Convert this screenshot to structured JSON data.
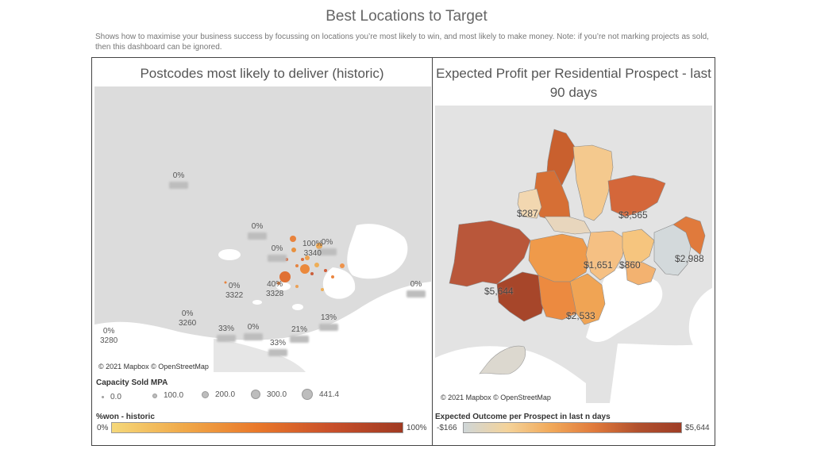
{
  "dashboard": {
    "title": "Best Locations to Target",
    "subtitle": "Shows how to maximise your business success by focussing on locations you’re most likely to win, and most likely to make money. Note: if you’re not marking projects as sold, then this dashboard can be ignored."
  },
  "left_panel": {
    "title": "Postcodes most likely to deliver (historic)",
    "attribution": "© 2021 Mapbox © OpenStreetMap",
    "labels": [
      {
        "pct": "0%",
        "code": ""
      },
      {
        "pct": "0%",
        "code": ""
      },
      {
        "pct": "0%",
        "code": ""
      },
      {
        "pct": "0%",
        "code": ""
      },
      {
        "pct": "100%",
        "code": "3340"
      },
      {
        "pct": "40%",
        "code": "3328"
      },
      {
        "pct": "0%",
        "code": "3322"
      },
      {
        "pct": "0%",
        "code": "3260"
      },
      {
        "pct": "0%",
        "code": "3280"
      },
      {
        "pct": "33%",
        "code": ""
      },
      {
        "pct": "0%",
        "code": ""
      },
      {
        "pct": "21%",
        "code": ""
      },
      {
        "pct": "13%",
        "code": ""
      },
      {
        "pct": "33%",
        "code": ""
      },
      {
        "pct": "0%",
        "code": ""
      }
    ],
    "size_legend": {
      "title": "Capacity Sold MPA",
      "items": [
        "0.0",
        "100.0",
        "200.0",
        "300.0",
        "441.4"
      ]
    },
    "color_legend": {
      "title": "%won - historic",
      "min": "0%",
      "max": "100%",
      "colors": [
        "#f5d87a",
        "#f0a848",
        "#e9782a",
        "#c9502a",
        "#a03a22"
      ]
    }
  },
  "right_panel": {
    "title": "Expected Profit per Residential Prospect - last 90 days",
    "attribution": "© 2021 Mapbox © OpenStreetMap",
    "labels": [
      "$287",
      "$3,565",
      "$1,651",
      "$860",
      "$2,988",
      "$5,644",
      "$2,533"
    ],
    "color_legend": {
      "title": "Expected Outcome per Prospect in last n days",
      "min": "-$166",
      "max": "$5,644",
      "colors": [
        "#cfd6d8",
        "#f4d39a",
        "#f1a95a",
        "#e07a3c",
        "#b1502d",
        "#9e3d26"
      ]
    }
  }
}
